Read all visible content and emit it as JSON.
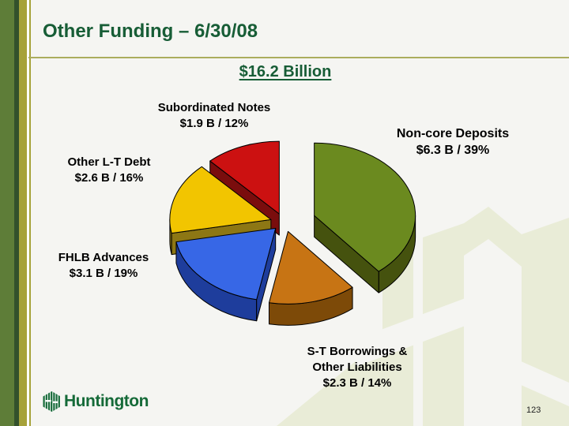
{
  "slide": {
    "title": "Other Funding – 6/30/08",
    "subtitle": "$16.2 Billion",
    "page_number": "123",
    "logo_text": "Huntington"
  },
  "colors": {
    "title_green": "#175d36",
    "logo_green": "#156a38",
    "header_rule_olive": "#abad5e",
    "left_bar_green": "#5e7d38",
    "left_bar_dark_green": "#33512b",
    "left_bar_olive": "#a6a23a",
    "watermark_sage": "#e9ecd7",
    "background": "#f5f5f2"
  },
  "chart_data": {
    "type": "pie",
    "style": "3d-exploded",
    "title": "$16.2 Billion",
    "total_billions": 16.2,
    "units": "USD billions",
    "start_angle": "12 o'clock",
    "direction": "clockwise",
    "slices": [
      {
        "label": "Non-core Deposits",
        "value_b": 6.3,
        "pct": 39,
        "value_text": "$6.3 B / 39%",
        "color": "#6b8a1f",
        "side_color": "#45520e"
      },
      {
        "label": "S-T Borrowings & Other Liabilities",
        "value_b": 2.3,
        "pct": 14,
        "value_text": "$2.3 B / 14%",
        "color": "#c77414",
        "side_color": "#7d4a08"
      },
      {
        "label": "FHLB Advances",
        "value_b": 3.1,
        "pct": 19,
        "value_text": "$3.1 B / 19%",
        "color": "#3767e6",
        "side_color": "#1e3d9c"
      },
      {
        "label": "Other L-T Debt",
        "value_b": 2.6,
        "pct": 16,
        "value_text": "$2.6 B / 16%",
        "color": "#f2c500",
        "side_color": "#8d7714"
      },
      {
        "label": "Subordinated Notes",
        "value_b": 1.9,
        "pct": 12,
        "value_text": "$1.9 B / 12%",
        "color": "#cc1111",
        "side_color": "#7a0d0d"
      }
    ]
  },
  "callouts": {
    "subordinated": {
      "line1": "Subordinated Notes",
      "line2": "$1.9 B / 12%"
    },
    "noncore": {
      "line1": "Non-core Deposits",
      "line2": "$6.3 B / 39%"
    },
    "otherlt": {
      "line1": "Other L-T Debt",
      "line2": "$2.6 B / 16%"
    },
    "fhlb": {
      "line1": "FHLB Advances",
      "line2": "$3.1 B / 19%"
    },
    "stborrow": {
      "line1": "S-T Borrowings &",
      "line2": "Other Liabilities",
      "line3": "$2.3 B / 14%"
    }
  }
}
